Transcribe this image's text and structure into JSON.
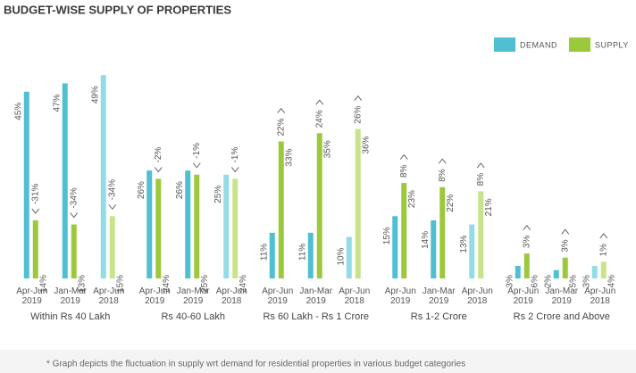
{
  "chart_data": {
    "type": "grouped_bar",
    "title": "BUDGET-WISE SUPPLY OF PROPERTIES",
    "groups": [
      "Within Rs 40 Lakh",
      "Rs 40-60 Lakh",
      "Rs 60 Lakh - Rs 1 Crore",
      "Rs 1-2 Crore",
      "Rs 2 Crore and Above"
    ],
    "categories": [
      [
        "Apr-Jun",
        "2019"
      ],
      [
        "Jan-Mar",
        "2019"
      ],
      [
        "Apr-Jun",
        "2018"
      ],
      [
        "Apr-Jun",
        "2019"
      ],
      [
        "Jan-Mar",
        "2019"
      ],
      [
        "Apr-Jun",
        "2018"
      ],
      [
        "Apr-Jun",
        "2019"
      ],
      [
        "Jan-Mar",
        "2019"
      ],
      [
        "Apr-Jun",
        "2018"
      ],
      [
        "Apr-Jun",
        "2019"
      ],
      [
        "Jan-Mar",
        "2019"
      ],
      [
        "Apr-Jun",
        "2018"
      ],
      [
        "Apr-Jun",
        "2019"
      ],
      [
        "Jan-Mar",
        "2019"
      ],
      [
        "Apr-Jun",
        "2018"
      ]
    ],
    "series": [
      {
        "name": "DEMAND",
        "color": "#4fbfd1",
        "colors": [
          "#4fbfd1",
          "#4fbfd1",
          "#93dbe7",
          "#4fbfd1",
          "#4fbfd1",
          "#93dbe7",
          "#4fbfd1",
          "#4fbfd1",
          "#93dbe7",
          "#4fbfd1",
          "#4fbfd1",
          "#93dbe7",
          "#4fbfd1",
          "#4fbfd1",
          "#93dbe7"
        ],
        "values": [
          45,
          47,
          49,
          26,
          26,
          25,
          11,
          11,
          10,
          15,
          14,
          13,
          3,
          2,
          3
        ],
        "value_labels": [
          "45%",
          "47%",
          "49%",
          "26%",
          "26%",
          "25%",
          "11%",
          "11%",
          "10%",
          "15%",
          "14%",
          "13%",
          "3%",
          "2%",
          "3%"
        ]
      },
      {
        "name": "SUPPLY",
        "color": "#9cc93b",
        "colors": [
          "#9cc93b",
          "#9cc93b",
          "#c8e38a",
          "#9cc93b",
          "#9cc93b",
          "#c8e38a",
          "#9cc93b",
          "#9cc93b",
          "#c8e38a",
          "#9cc93b",
          "#9cc93b",
          "#c8e38a",
          "#9cc93b",
          "#9cc93b",
          "#c8e38a"
        ],
        "values": [
          14,
          13,
          15,
          24,
          25,
          24,
          33,
          35,
          36,
          23,
          22,
          21,
          6,
          5,
          4
        ],
        "value_labels": [
          "14%",
          "13%",
          "15%",
          "24%",
          "25%",
          "24%",
          "33%",
          "35%",
          "36%",
          "23%",
          "22%",
          "21%",
          "6%",
          "5%",
          "4%"
        ]
      }
    ],
    "change": {
      "values": [
        -31,
        -34,
        -34,
        -2,
        -1,
        -1,
        22,
        24,
        26,
        8,
        8,
        8,
        3,
        3,
        1
      ],
      "value_labels": [
        "-31%",
        "-34%",
        "-34%",
        "-2%",
        "-1%",
        "-1%",
        "22%",
        "24%",
        "26%",
        "8%",
        "8%",
        "8%",
        "3%",
        "3%",
        "1%"
      ]
    },
    "footnote": "* Graph depicts the fluctuation in supply wrt demand for residential properties in various budget categories"
  }
}
